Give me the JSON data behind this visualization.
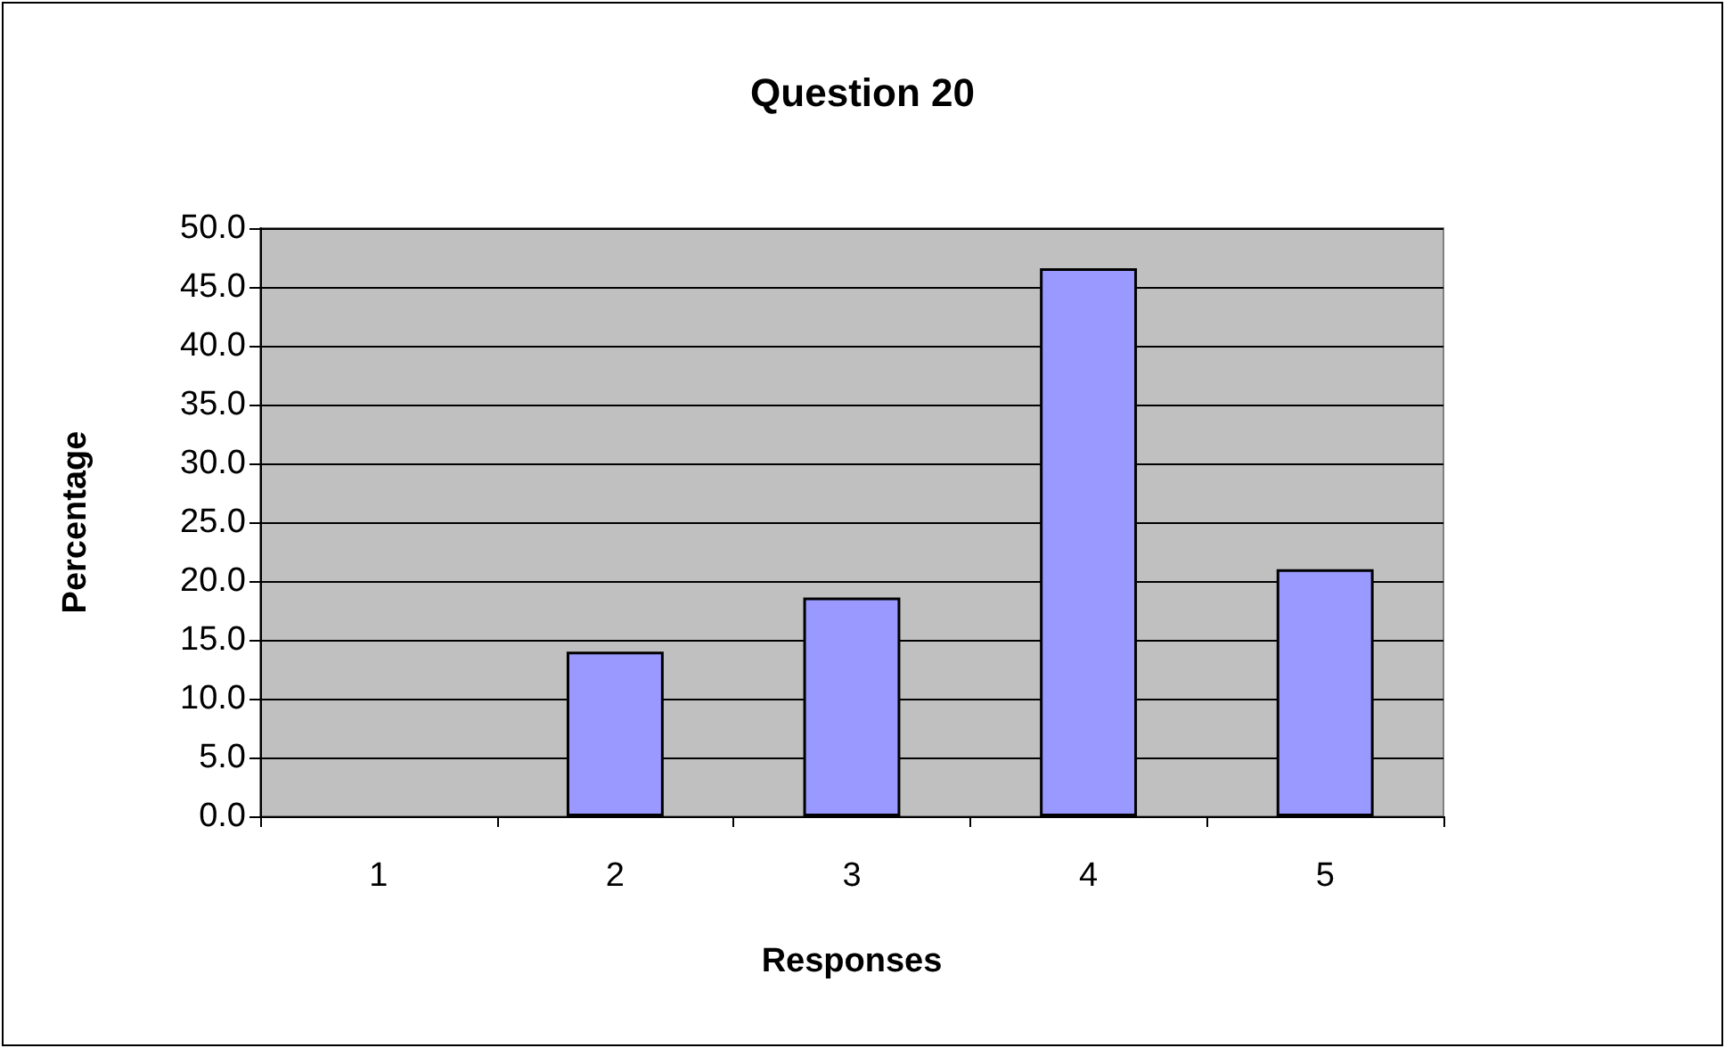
{
  "chart_data": {
    "type": "bar",
    "title": "Question 20",
    "xlabel": "Responses",
    "ylabel": "Percentage",
    "categories": [
      "1",
      "2",
      "3",
      "4",
      "5"
    ],
    "values": [
      0,
      14.0,
      18.6,
      46.6,
      21.0
    ],
    "color": "#9999ff",
    "ylim": [
      0,
      50
    ],
    "yticks": [
      {
        "value": 0,
        "label": "0.0"
      },
      {
        "value": 5,
        "label": "5.0"
      },
      {
        "value": 10,
        "label": "10.0"
      },
      {
        "value": 15,
        "label": "15.0"
      },
      {
        "value": 20,
        "label": "20.0"
      },
      {
        "value": 25,
        "label": "25.0"
      },
      {
        "value": 30,
        "label": "30.0"
      },
      {
        "value": 35,
        "label": "35.0"
      },
      {
        "value": 40,
        "label": "40.0"
      },
      {
        "value": 45,
        "label": "45.0"
      },
      {
        "value": 50,
        "label": "50.0"
      }
    ],
    "grid": "y"
  }
}
